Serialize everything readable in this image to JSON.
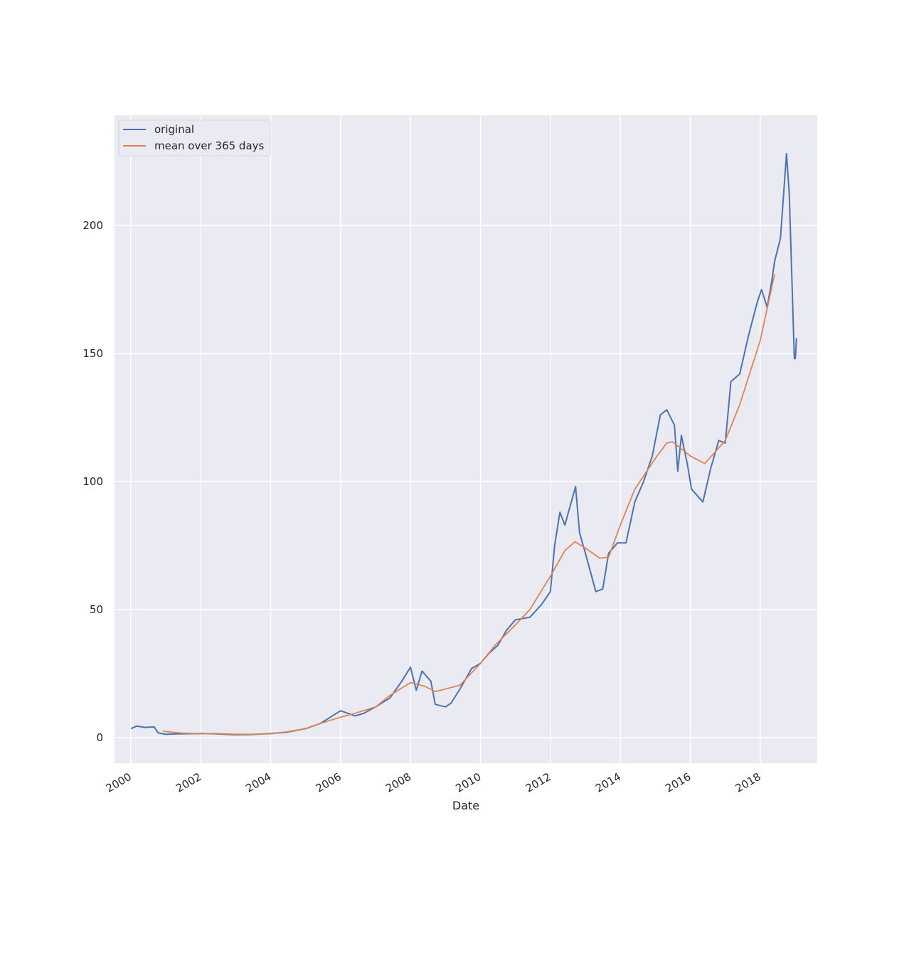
{
  "chart_data": {
    "type": "line",
    "title": "",
    "xlabel": "Date",
    "ylabel": "",
    "xlim": [
      "1999-07-15",
      "2019-08-20"
    ],
    "ylim": [
      -10,
      243
    ],
    "x_ticks": [
      "2000-01-01",
      "2002-01-01",
      "2004-01-01",
      "2006-01-01",
      "2008-01-01",
      "2010-01-01",
      "2012-01-01",
      "2014-01-01",
      "2016-01-01",
      "2018-01-01"
    ],
    "x_tick_labels": [
      "2000",
      "2002",
      "2004",
      "2006",
      "2008",
      "2010",
      "2012",
      "2014",
      "2016",
      "2018"
    ],
    "y_ticks": [
      0,
      50,
      100,
      150,
      200
    ],
    "y_tick_labels": [
      "0",
      "50",
      "100",
      "150",
      "200"
    ],
    "grid": true,
    "legend": "top-left",
    "series": [
      {
        "name": "original",
        "color": "#4c72b0",
        "x": [
          "2000-01-03",
          "2000-03-01",
          "2000-06-01",
          "2000-09-01",
          "2000-10-15",
          "2001-01-01",
          "2001-06-01",
          "2002-01-01",
          "2002-06-01",
          "2003-01-01",
          "2003-06-01",
          "2004-01-01",
          "2004-06-01",
          "2005-01-01",
          "2005-06-01",
          "2006-01-01",
          "2006-06-01",
          "2006-09-01",
          "2007-01-01",
          "2007-06-01",
          "2007-10-01",
          "2008-01-01",
          "2008-03-01",
          "2008-05-01",
          "2008-08-01",
          "2008-09-15",
          "2009-01-01",
          "2009-03-01",
          "2009-06-01",
          "2009-10-01",
          "2010-01-01",
          "2010-04-01",
          "2010-07-01",
          "2010-10-01",
          "2011-01-01",
          "2011-06-01",
          "2011-10-01",
          "2012-01-01",
          "2012-02-15",
          "2012-04-10",
          "2012-06-01",
          "2012-09-20",
          "2012-11-01",
          "2013-01-01",
          "2013-04-20",
          "2013-07-01",
          "2013-09-01",
          "2013-12-01",
          "2014-03-01",
          "2014-06-01",
          "2014-09-01",
          "2014-12-01",
          "2015-02-23",
          "2015-05-01",
          "2015-07-20",
          "2015-08-24",
          "2015-10-01",
          "2015-12-01",
          "2016-01-15",
          "2016-05-12",
          "2016-08-01",
          "2016-10-25",
          "2017-01-01",
          "2017-03-01",
          "2017-06-01",
          "2017-09-01",
          "2017-12-01",
          "2018-01-15",
          "2018-03-15",
          "2018-05-01",
          "2018-06-01",
          "2018-08-01",
          "2018-10-03",
          "2018-11-01",
          "2018-12-01",
          "2018-12-24",
          "2019-01-03",
          "2019-01-15"
        ],
        "y": [
          3.5,
          4.5,
          4.0,
          4.2,
          1.8,
          1.3,
          1.5,
          1.6,
          1.5,
          1.1,
          1.2,
          1.6,
          2.0,
          3.5,
          5.5,
          10.5,
          8.5,
          9.5,
          12.0,
          15.5,
          22.0,
          27.5,
          18.5,
          26.0,
          22.0,
          13.0,
          12.0,
          13.5,
          19.0,
          27.0,
          29.0,
          33.0,
          36.0,
          42.0,
          46.0,
          47.0,
          52.0,
          57.0,
          75.0,
          88.0,
          83.0,
          98.0,
          80.0,
          72.0,
          57.0,
          58.0,
          72.0,
          76.0,
          76.0,
          92.0,
          100.0,
          110.0,
          126.0,
          128.0,
          122.0,
          104.0,
          118.0,
          107.0,
          97.0,
          92.0,
          105.0,
          116.0,
          115.0,
          139.0,
          142.0,
          157.0,
          170.0,
          175.0,
          168.0,
          178.0,
          186.0,
          195.0,
          228.0,
          212.0,
          176.0,
          148.0,
          148.0,
          156.0
        ]
      },
      {
        "name": "mean over 365 days",
        "color": "#dd8452",
        "x": [
          "2000-12-01",
          "2001-06-01",
          "2002-01-01",
          "2002-06-01",
          "2003-01-01",
          "2003-06-01",
          "2004-01-01",
          "2004-06-01",
          "2005-01-01",
          "2005-06-01",
          "2006-01-01",
          "2006-06-01",
          "2007-01-01",
          "2007-06-01",
          "2008-01-01",
          "2008-06-01",
          "2008-09-15",
          "2009-01-01",
          "2009-06-01",
          "2010-01-01",
          "2010-06-01",
          "2011-01-01",
          "2011-06-01",
          "2012-01-01",
          "2012-06-01",
          "2012-09-15",
          "2013-01-01",
          "2013-06-01",
          "2013-09-01",
          "2014-01-01",
          "2014-06-01",
          "2015-01-01",
          "2015-05-01",
          "2015-07-01",
          "2016-01-01",
          "2016-06-01",
          "2017-01-01",
          "2017-06-01",
          "2018-01-01",
          "2018-06-01"
        ],
        "y": [
          2.5,
          1.8,
          1.5,
          1.6,
          1.3,
          1.3,
          1.5,
          2.2,
          3.5,
          5.5,
          8.0,
          9.5,
          12.0,
          16.5,
          21.5,
          20.0,
          18.0,
          19.0,
          20.5,
          29.0,
          36.0,
          44.0,
          50.0,
          63.0,
          73.0,
          76.5,
          74.0,
          70.0,
          70.5,
          83.0,
          97.0,
          109.0,
          115.0,
          115.5,
          110.0,
          107.0,
          116.0,
          130.0,
          155.0,
          181.0
        ]
      }
    ]
  }
}
